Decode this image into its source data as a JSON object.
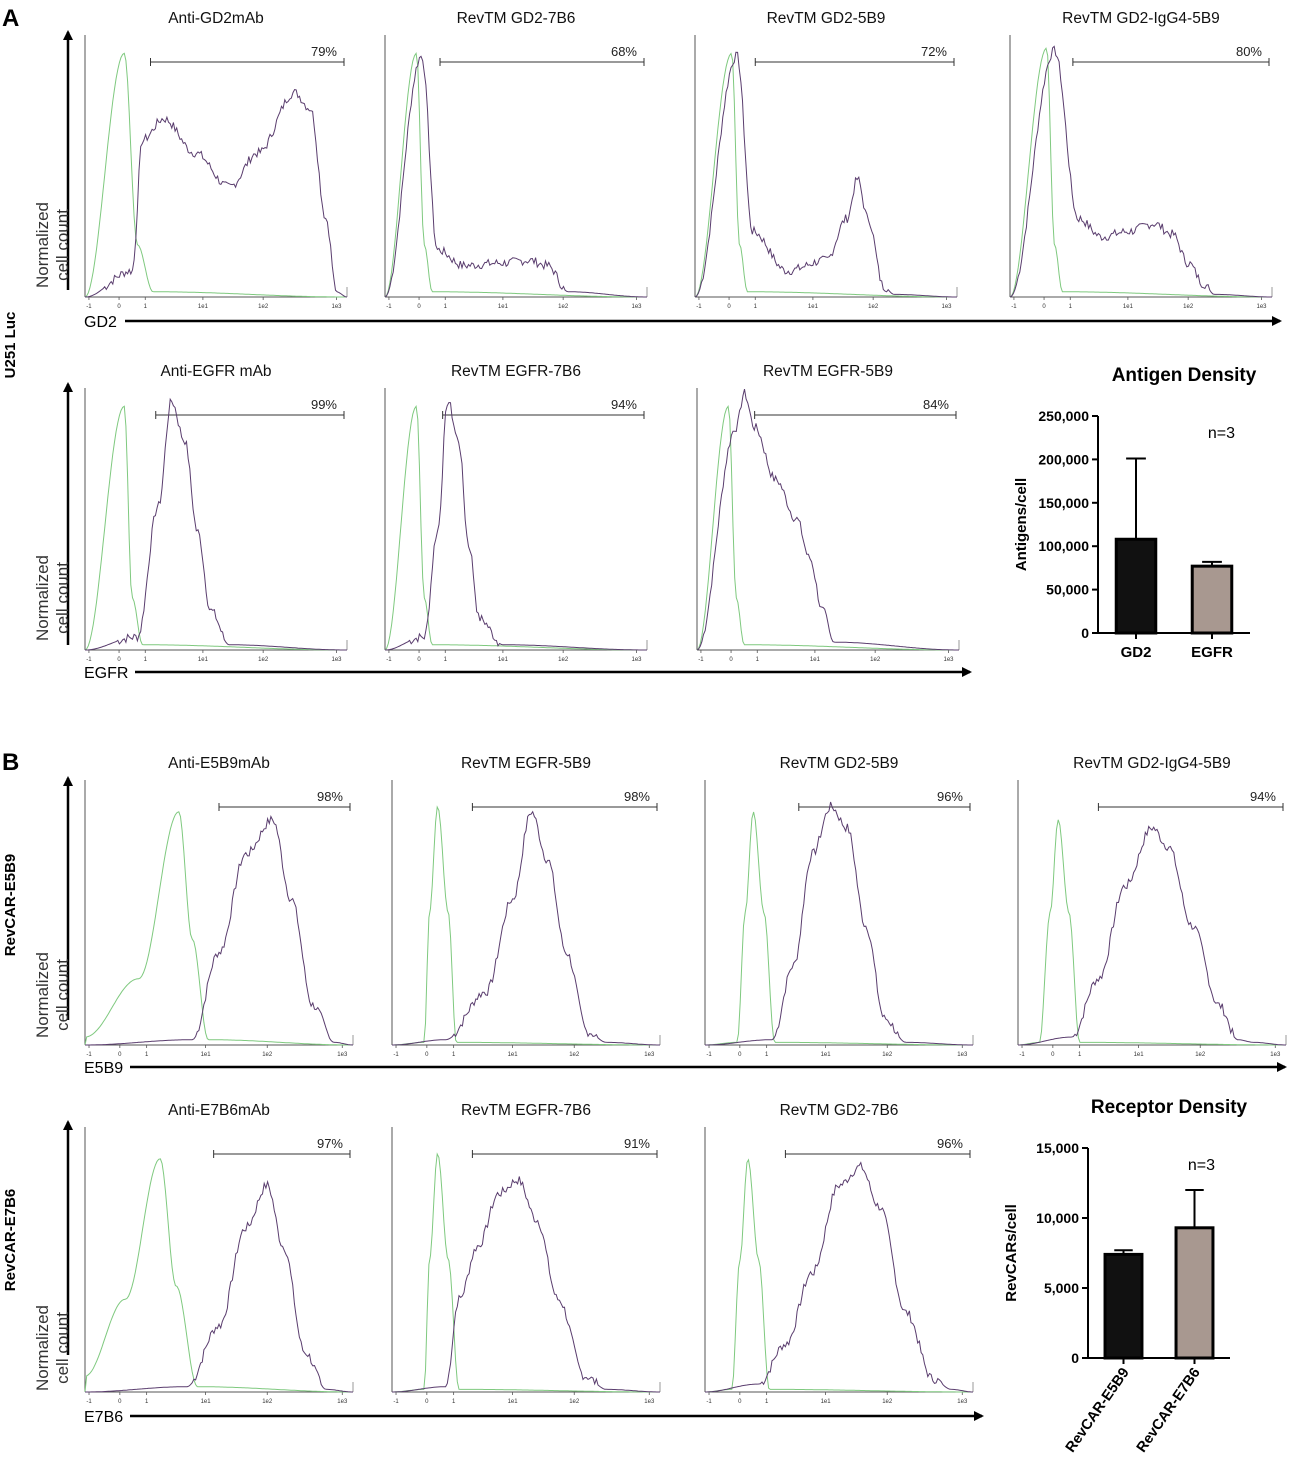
{
  "panels": {
    "A": {
      "letter": "A",
      "side_label": "U251 Luc",
      "y_label_line1": "Normalized",
      "y_label_line2": "cell count",
      "rows": [
        {
          "x_label": "GD2",
          "plots": [
            {
              "title": "Anti-GD2mAb",
              "percent": "79%"
            },
            {
              "title": "RevTM GD2-7B6",
              "percent": "68%"
            },
            {
              "title": "RevTM GD2-5B9",
              "percent": "72%"
            },
            {
              "title": "RevTM GD2-IgG4-5B9",
              "percent": "80%"
            }
          ]
        },
        {
          "x_label": "EGFR",
          "plots": [
            {
              "title": "Anti-EGFR mAb",
              "percent": "99%"
            },
            {
              "title": "RevTM EGFR-7B6",
              "percent": "94%"
            },
            {
              "title": "RevTM EGFR-5B9",
              "percent": "84%"
            }
          ]
        }
      ]
    },
    "B": {
      "letter": "B",
      "y_label_line1": "Normalized",
      "y_label_line2": "cell count",
      "rows": [
        {
          "side_label": "RevCAR-E5B9",
          "x_label": "E5B9",
          "plots": [
            {
              "title": "Anti-E5B9mAb",
              "percent": "98%"
            },
            {
              "title": "RevTM EGFR-5B9",
              "percent": "98%"
            },
            {
              "title": "RevTM GD2-5B9",
              "percent": "96%"
            },
            {
              "title": "RevTM GD2-IgG4-5B9",
              "percent": "94%"
            }
          ]
        },
        {
          "side_label": "RevCAR-E7B6",
          "x_label": "E7B6",
          "plots": [
            {
              "title": "Anti-E7B6mAb",
              "percent": "97%"
            },
            {
              "title": "RevTM EGFR-7B6",
              "percent": "91%"
            },
            {
              "title": "RevTM GD2-7B6",
              "percent": "96%"
            }
          ]
        }
      ]
    }
  },
  "hist_ticks": [
    "-1",
    "0",
    "1",
    "1e1",
    "1e2",
    "1e3"
  ],
  "colors": {
    "control": "#7fc97f",
    "sample": "#5a3d6e",
    "bar_dark": "#111111",
    "bar_light": "#a89890"
  },
  "chart_data": [
    {
      "type": "bar",
      "title": "Antigen Density",
      "categories": [
        "GD2",
        "EGFR"
      ],
      "values": [
        108000,
        77000
      ],
      "errors": [
        93000,
        5000
      ],
      "ylabel": "Antigens/cell",
      "ylim": [
        0,
        250000
      ],
      "yticks": [
        0,
        50000,
        100000,
        150000,
        200000,
        250000
      ],
      "ytick_labels": [
        "0",
        "50,000",
        "100,000",
        "150,000",
        "200,000",
        "250,000"
      ],
      "annotation": "n=3"
    },
    {
      "type": "bar",
      "title": "Receptor Density",
      "categories": [
        "RevCAR-E5B9",
        "RevCAR-E7B6"
      ],
      "values": [
        7400,
        9300
      ],
      "errors": [
        300,
        2700
      ],
      "ylabel": "RevCARs/cell",
      "ylim": [
        0,
        15000
      ],
      "yticks": [
        0,
        5000,
        10000,
        15000
      ],
      "ytick_labels": [
        "0",
        "5,000",
        "10,000",
        "15,000"
      ],
      "annotation": "n=3"
    }
  ]
}
